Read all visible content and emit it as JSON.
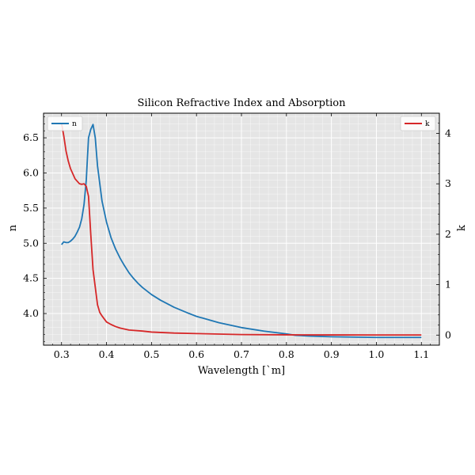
{
  "chart_data": {
    "type": "line",
    "title": "Silicon Refractive Index and Absorption",
    "xlabel": "Wavelength [`m]",
    "ylabel_left": "n",
    "ylabel_right": "k",
    "xlim": [
      0.26,
      1.14
    ],
    "ylim_left": [
      3.55,
      6.85
    ],
    "ylim_right": [
      -0.2,
      4.4
    ],
    "x_ticks": [
      0.3,
      0.4,
      0.5,
      0.6,
      0.7,
      0.8,
      0.9,
      1.0,
      1.1
    ],
    "x_tick_labels": [
      "0.3",
      "0.4",
      "0.5",
      "0.6",
      "0.7",
      "0.8",
      "0.9",
      "1.0",
      "1.1"
    ],
    "y_left_ticks": [
      4.0,
      4.5,
      5.0,
      5.5,
      6.0,
      6.5
    ],
    "y_left_tick_labels": [
      "4.0",
      "4.5",
      "5.0",
      "5.5",
      "6.0",
      "6.5"
    ],
    "y_right_ticks": [
      0,
      1,
      2,
      3,
      4
    ],
    "y_right_tick_labels": [
      "0",
      "1",
      "2",
      "3",
      "4"
    ],
    "grid": true,
    "colors": {
      "n": "#1f77b4",
      "k": "#d62728",
      "background": "#e5e5e5",
      "grid": "#ffffff"
    },
    "series": [
      {
        "name": "n",
        "axis": "left",
        "legend_position": "top-left",
        "x": [
          0.3,
          0.305,
          0.31,
          0.315,
          0.32,
          0.325,
          0.33,
          0.335,
          0.34,
          0.345,
          0.35,
          0.355,
          0.36,
          0.365,
          0.37,
          0.375,
          0.38,
          0.39,
          0.4,
          0.41,
          0.42,
          0.43,
          0.44,
          0.45,
          0.46,
          0.47,
          0.48,
          0.5,
          0.52,
          0.55,
          0.58,
          0.6,
          0.65,
          0.7,
          0.75,
          0.8,
          0.82,
          0.85,
          0.9,
          1.0,
          1.1
        ],
        "y": [
          4.98,
          5.02,
          5.01,
          5.01,
          5.03,
          5.06,
          5.1,
          5.16,
          5.23,
          5.35,
          5.55,
          5.9,
          6.5,
          6.62,
          6.69,
          6.5,
          6.1,
          5.6,
          5.3,
          5.08,
          4.92,
          4.79,
          4.68,
          4.58,
          4.5,
          4.43,
          4.37,
          4.27,
          4.19,
          4.09,
          4.01,
          3.96,
          3.87,
          3.8,
          3.75,
          3.71,
          3.69,
          3.68,
          3.67,
          3.66,
          3.66
        ]
      },
      {
        "name": "k",
        "axis": "right",
        "legend_position": "top-right",
        "x": [
          0.3,
          0.305,
          0.31,
          0.315,
          0.32,
          0.33,
          0.34,
          0.345,
          0.35,
          0.355,
          0.36,
          0.365,
          0.37,
          0.375,
          0.38,
          0.385,
          0.39,
          0.4,
          0.41,
          0.42,
          0.43,
          0.45,
          0.48,
          0.5,
          0.55,
          0.6,
          0.7,
          0.8,
          0.9,
          1.0,
          1.1
        ],
        "y": [
          4.2,
          3.95,
          3.65,
          3.45,
          3.3,
          3.1,
          3.0,
          2.99,
          3.0,
          2.95,
          2.75,
          2.0,
          1.3,
          0.95,
          0.6,
          0.45,
          0.38,
          0.26,
          0.21,
          0.17,
          0.14,
          0.1,
          0.08,
          0.06,
          0.04,
          0.03,
          0.01,
          0.005,
          0.003,
          0.002,
          0.002
        ]
      }
    ]
  }
}
